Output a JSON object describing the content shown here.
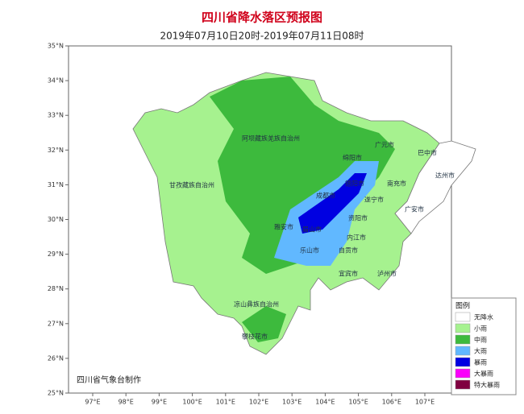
{
  "header": {
    "title": "四川省降水落区预报图",
    "subtitle": "2019年07月10日20时-2019年07月11日08时"
  },
  "axes": {
    "latitudes": [
      "35°N",
      "34°N",
      "33°N",
      "32°N",
      "31°N",
      "30°N",
      "29°N",
      "28°N",
      "27°N",
      "26°N",
      "25°N"
    ],
    "longitudes": [
      "97°E",
      "98°E",
      "99°E",
      "100°E",
      "101°E",
      "102°E",
      "103°E",
      "104°E",
      "105°E",
      "106°E",
      "107°E"
    ]
  },
  "regions": [
    {
      "label": "阿坝藏族羌族自治州"
    },
    {
      "label": "甘孜藏族自治州"
    },
    {
      "label": "凉山彝族自治州"
    },
    {
      "label": "攀枝花市"
    },
    {
      "label": "绵阳市"
    },
    {
      "label": "广元市"
    },
    {
      "label": "巴中市"
    },
    {
      "label": "达州市"
    },
    {
      "label": "南充市"
    },
    {
      "label": "德阳市"
    },
    {
      "label": "成都市"
    },
    {
      "label": "遂宁市"
    },
    {
      "label": "广安市"
    },
    {
      "label": "资阳市"
    },
    {
      "label": "雅安市"
    },
    {
      "label": "眉山市"
    },
    {
      "label": "乐山市"
    },
    {
      "label": "内江市"
    },
    {
      "label": "自贡市"
    },
    {
      "label": "宜宾市"
    },
    {
      "label": "泸州市"
    }
  ],
  "legend": {
    "title": "图例",
    "items": [
      {
        "label": "无降水",
        "color": "#ffffff"
      },
      {
        "label": "小雨",
        "color": "#a6f28f"
      },
      {
        "label": "中雨",
        "color": "#3dba3d"
      },
      {
        "label": "大雨",
        "color": "#61b8ff"
      },
      {
        "label": "暴雨",
        "color": "#0000e1"
      },
      {
        "label": "大暴雨",
        "color": "#fa00fa"
      },
      {
        "label": "特大暴雨",
        "color": "#800040"
      }
    ]
  },
  "credit": "四川省气象台制作"
}
